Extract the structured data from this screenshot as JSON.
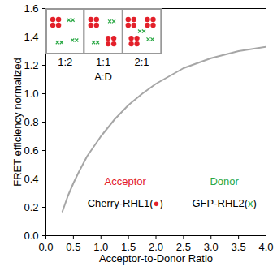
{
  "chart_data": {
    "type": "line",
    "x": [
      0.3,
      0.4,
      0.5,
      0.6,
      0.75,
      1,
      1.25,
      1.5,
      1.75,
      2,
      2.5,
      3,
      3.5,
      4
    ],
    "values": [
      0.17,
      0.28,
      0.37,
      0.45,
      0.56,
      0.7,
      0.82,
      0.92,
      1.0,
      1.07,
      1.18,
      1.25,
      1.3,
      1.33
    ],
    "color": "#a6a6a6",
    "xlabel": "Acceptor-to-Donor Ratio",
    "ylabel": "FRET efficiency normalized",
    "xlim": [
      0,
      4
    ],
    "ylim": [
      0,
      1.6
    ],
    "xticks": [
      0,
      0.5,
      1,
      1.5,
      2,
      2.5,
      3,
      3.5,
      4
    ],
    "yticks": [
      0,
      0.2,
      0.4,
      0.6,
      0.8,
      1,
      1.2,
      1.4,
      1.6
    ],
    "annotations": [
      {
        "parts": [
          {
            "text": "Acceptor",
            "color": "#e3202a"
          }
        ]
      },
      {
        "parts": [
          {
            "text": "Donor",
            "color": "#2aa845"
          }
        ]
      },
      {
        "parts": [
          {
            "text": "Cherry-RHL1("
          },
          {
            "text": "●",
            "color": "#e3202a"
          },
          {
            "text": ")"
          }
        ]
      },
      {
        "parts": [
          {
            "text": "GFP-RHL2("
          },
          {
            "text": "x",
            "color": "#2aa845"
          },
          {
            "text": ")"
          }
        ]
      }
    ],
    "inset": {
      "labels": [
        "1:2",
        "1:1",
        "2:1"
      ],
      "axis_label": "A:D"
    }
  }
}
